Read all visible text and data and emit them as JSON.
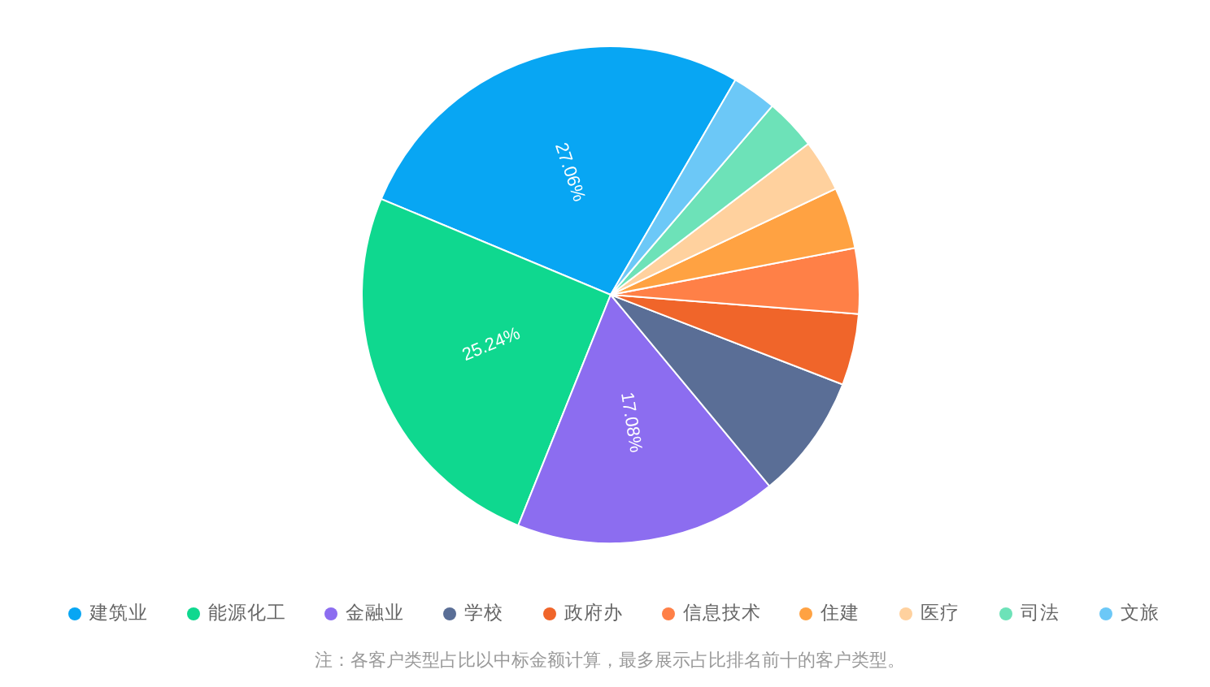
{
  "chart_data": {
    "type": "pie",
    "categories": [
      "建筑业",
      "能源化工",
      "金融业",
      "学校",
      "政府办",
      "信息技术",
      "住建",
      "医疗",
      "司法",
      "文旅"
    ],
    "values": [
      27.06,
      25.24,
      17.08,
      8.1,
      4.65,
      4.25,
      4.0,
      3.38,
      3.35,
      2.89
    ],
    "colors": [
      "#08a6f3",
      "#0fd88f",
      "#8c6df0",
      "#5a6e96",
      "#f0652a",
      "#ff8047",
      "#ffa242",
      "#ffd19e",
      "#6de2b8",
      "#6cc8f7"
    ],
    "value_labels": [
      "27.06%",
      "25.24%",
      "17.08%",
      null,
      null,
      null,
      null,
      null,
      null,
      null
    ],
    "legend": "bottom",
    "annotations": [
      "注：各客户类型占比以中标金额计算，最多展示占比排名前十的客户类型。"
    ]
  }
}
